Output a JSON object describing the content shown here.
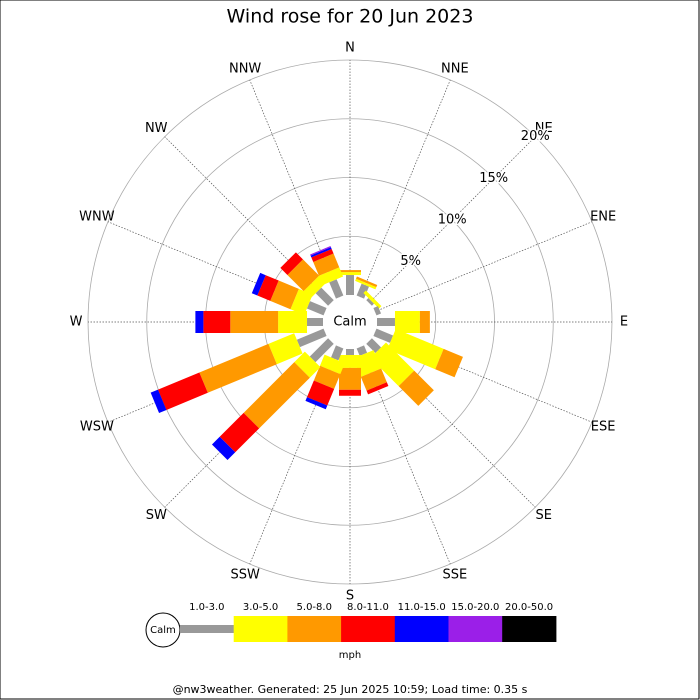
{
  "chart_data": {
    "type": "wind-rose",
    "title": "Wind rose for 20 Jun 2023",
    "directions": [
      "N",
      "NNE",
      "NE",
      "ENE",
      "E",
      "ESE",
      "SE",
      "SSE",
      "S",
      "SSW",
      "SW",
      "WSW",
      "W",
      "WNW",
      "NW",
      "NNW"
    ],
    "rlim": [
      0,
      20
    ],
    "rticks": [
      {
        "value": 5,
        "label": "5%"
      },
      {
        "value": 10,
        "label": "10%"
      },
      {
        "value": 15,
        "label": "15%"
      },
      {
        "value": 20,
        "label": "20%"
      }
    ],
    "calm_label": "Calm",
    "series": [
      {
        "name": "1.0-3.0",
        "color": "#999999",
        "values": [
          1.7,
          1.1,
          0.25,
          0.42,
          1.53,
          1.53,
          1.1,
          0.68,
          0.51,
          1.1,
          2.2,
          2.46,
          1.36,
          1.53,
          1.5,
          1.5
        ]
      },
      {
        "name": "3.0-5.0",
        "color": "#ffff00",
        "values": [
          0.25,
          0.2,
          0.3,
          0,
          2.12,
          4.41,
          3.39,
          1.69,
          1.1,
          1.02,
          1.27,
          2.37,
          2.46,
          1.27,
          0.85,
          0.85
        ]
      },
      {
        "name": "5.0-8.0",
        "color": "#ff9900",
        "values": [
          0.17,
          0.2,
          0,
          0,
          0.85,
          1.78,
          2.37,
          1.27,
          1.86,
          1.36,
          6.1,
          6.36,
          4.07,
          1.86,
          1.95,
          1.27
        ]
      },
      {
        "name": "8.0-11.0",
        "color": "#ff0000",
        "values": [
          0,
          0,
          0,
          0,
          0,
          0,
          0,
          0.34,
          0.51,
          1.53,
          2.88,
          3.81,
          2.29,
          1.19,
          0.85,
          0.42
        ]
      },
      {
        "name": "11.0-15.0",
        "color": "#0000ff",
        "values": [
          0,
          0,
          0,
          0,
          0,
          0,
          0,
          0,
          0,
          0.34,
          0.93,
          0.68,
          0.68,
          0.51,
          0,
          0.17
        ]
      },
      {
        "name": "15.0-20.0",
        "color": "#9b1fe8",
        "values": [
          0,
          0,
          0,
          0,
          0,
          0,
          0,
          0,
          0,
          0,
          0,
          0,
          0,
          0,
          0,
          0.1
        ]
      },
      {
        "name": "20.0-50.0",
        "color": "#000000",
        "values": [
          0,
          0,
          0,
          0,
          0,
          0,
          0,
          0,
          0,
          0,
          0,
          0,
          0,
          0,
          0,
          0
        ]
      }
    ],
    "legend_unit": "mph",
    "footer": "@nw3weather. Generated: 25 Jun 2025 10:59; Load time: 0.35 s"
  }
}
